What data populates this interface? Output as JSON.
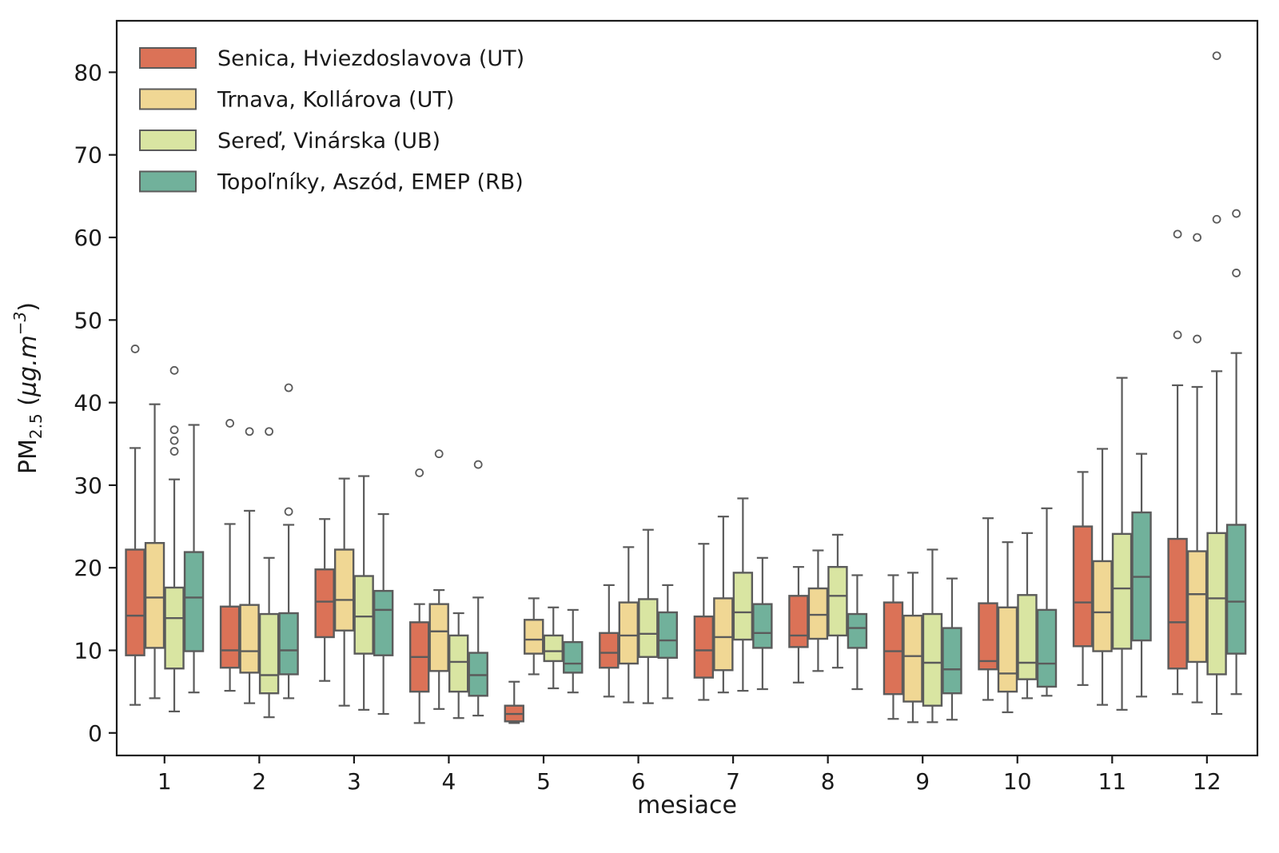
{
  "figure": {
    "title": "",
    "xlabel": "mesiace",
    "ylabel_parts": {
      "base": "PM",
      "sub": "2.5",
      "open": "  (",
      "unit_italic": "µg.m",
      "sup": "−3",
      "close": ")"
    },
    "ylabel_plain": "PM2.5 (µg.m⁻³)"
  },
  "chart_data": {
    "type": "boxplot",
    "title": "",
    "xlabel": "mesiace",
    "ylabel": "PM2.5 (µg.m^-3)",
    "categories": [
      "1",
      "2",
      "3",
      "4",
      "5",
      "6",
      "7",
      "8",
      "9",
      "10",
      "11",
      "12"
    ],
    "yticks": [
      0,
      10,
      20,
      30,
      40,
      50,
      60,
      70,
      80
    ],
    "ylim": [
      -2.7,
      86.2
    ],
    "grid": false,
    "legend_position": "upper-left",
    "colors": {
      "box_edge": "#5b5b5b",
      "whisker": "#5b5b5b",
      "median": "#5b5b5b",
      "outlier_edge": "#5b5b5b",
      "axis": "#1a1a1a"
    },
    "series": [
      {
        "key": "senica",
        "name": "Senica, Hviezdoslavova (UT)",
        "color": "#db7257",
        "boxes": [
          {
            "lo": 3.4,
            "q1": 9.4,
            "med": 14.2,
            "q3": 22.2,
            "hi": 34.5,
            "out": [
              46.5
            ]
          },
          {
            "lo": 5.1,
            "q1": 7.9,
            "med": 10.0,
            "q3": 15.3,
            "hi": 25.3,
            "out": [
              37.5
            ]
          },
          {
            "lo": 6.3,
            "q1": 11.6,
            "med": 15.9,
            "q3": 19.8,
            "hi": 25.9,
            "out": []
          },
          {
            "lo": 1.2,
            "q1": 5.0,
            "med": 9.2,
            "q3": 13.4,
            "hi": 15.6,
            "out": [
              31.5
            ]
          },
          {
            "lo": 1.2,
            "q1": 1.4,
            "med": 2.3,
            "q3": 3.3,
            "hi": 6.2,
            "out": []
          },
          {
            "lo": 4.4,
            "q1": 7.9,
            "med": 9.7,
            "q3": 12.1,
            "hi": 17.9,
            "out": []
          },
          {
            "lo": 4.0,
            "q1": 6.7,
            "med": 10.0,
            "q3": 14.1,
            "hi": 22.9,
            "out": []
          },
          {
            "lo": 6.1,
            "q1": 10.4,
            "med": 11.8,
            "q3": 16.6,
            "hi": 20.1,
            "out": []
          },
          {
            "lo": 1.7,
            "q1": 4.7,
            "med": 9.9,
            "q3": 15.8,
            "hi": 19.1,
            "out": []
          },
          {
            "lo": 4.0,
            "q1": 7.7,
            "med": 8.7,
            "q3": 15.7,
            "hi": 26.0,
            "out": []
          },
          {
            "lo": 5.8,
            "q1": 10.5,
            "med": 15.8,
            "q3": 25.0,
            "hi": 31.6,
            "out": []
          },
          {
            "lo": 4.7,
            "q1": 7.8,
            "med": 13.4,
            "q3": 23.5,
            "hi": 42.1,
            "out": [
              60.4,
              48.2
            ]
          }
        ]
      },
      {
        "key": "trnava",
        "name": "Trnava, Kollárova (UT)",
        "color": "#f0d794",
        "boxes": [
          {
            "lo": 4.2,
            "q1": 10.3,
            "med": 16.4,
            "q3": 23.0,
            "hi": 39.8,
            "out": []
          },
          {
            "lo": 3.6,
            "q1": 7.3,
            "med": 9.9,
            "q3": 15.5,
            "hi": 26.9,
            "out": [
              36.5
            ]
          },
          {
            "lo": 3.3,
            "q1": 12.4,
            "med": 16.1,
            "q3": 22.2,
            "hi": 30.8,
            "out": []
          },
          {
            "lo": 2.9,
            "q1": 7.5,
            "med": 12.3,
            "q3": 15.6,
            "hi": 17.3,
            "out": [
              33.8
            ]
          },
          {
            "lo": 7.1,
            "q1": 9.6,
            "med": 11.3,
            "q3": 13.7,
            "hi": 16.3,
            "out": []
          },
          {
            "lo": 3.7,
            "q1": 8.4,
            "med": 11.8,
            "q3": 15.8,
            "hi": 22.5,
            "out": []
          },
          {
            "lo": 4.9,
            "q1": 7.6,
            "med": 11.6,
            "q3": 16.3,
            "hi": 26.2,
            "out": []
          },
          {
            "lo": 7.5,
            "q1": 11.4,
            "med": 14.3,
            "q3": 17.5,
            "hi": 22.1,
            "out": []
          },
          {
            "lo": 1.3,
            "q1": 3.8,
            "med": 9.3,
            "q3": 14.2,
            "hi": 19.4,
            "out": []
          },
          {
            "lo": 2.5,
            "q1": 5.0,
            "med": 7.2,
            "q3": 15.2,
            "hi": 23.1,
            "out": []
          },
          {
            "lo": 3.4,
            "q1": 9.9,
            "med": 14.6,
            "q3": 20.8,
            "hi": 34.4,
            "out": []
          },
          {
            "lo": 3.7,
            "q1": 8.6,
            "med": 16.8,
            "q3": 22.0,
            "hi": 41.9,
            "out": [
              60.0,
              47.7
            ]
          }
        ]
      },
      {
        "key": "sered",
        "name": "Sereď, Vinárska (UB)",
        "color": "#d9e5a2",
        "boxes": [
          {
            "lo": 2.6,
            "q1": 7.8,
            "med": 13.9,
            "q3": 17.6,
            "hi": 30.7,
            "out": [
              43.9,
              36.7,
              35.4,
              34.1
            ]
          },
          {
            "lo": 1.9,
            "q1": 4.8,
            "med": 7.0,
            "q3": 14.4,
            "hi": 21.2,
            "out": [
              36.5
            ]
          },
          {
            "lo": 2.8,
            "q1": 9.6,
            "med": 14.1,
            "q3": 19.0,
            "hi": 31.1,
            "out": []
          },
          {
            "lo": 1.8,
            "q1": 5.0,
            "med": 8.6,
            "q3": 11.8,
            "hi": 14.5,
            "out": []
          },
          {
            "lo": 5.4,
            "q1": 8.7,
            "med": 9.9,
            "q3": 11.8,
            "hi": 15.2,
            "out": []
          },
          {
            "lo": 3.6,
            "q1": 9.2,
            "med": 12.0,
            "q3": 16.2,
            "hi": 24.6,
            "out": []
          },
          {
            "lo": 5.1,
            "q1": 11.3,
            "med": 14.6,
            "q3": 19.4,
            "hi": 28.4,
            "out": []
          },
          {
            "lo": 7.9,
            "q1": 11.8,
            "med": 16.6,
            "q3": 20.1,
            "hi": 24.0,
            "out": []
          },
          {
            "lo": 1.3,
            "q1": 3.3,
            "med": 8.5,
            "q3": 14.4,
            "hi": 22.2,
            "out": []
          },
          {
            "lo": 4.2,
            "q1": 6.5,
            "med": 8.5,
            "q3": 16.7,
            "hi": 24.2,
            "out": []
          },
          {
            "lo": 2.8,
            "q1": 10.2,
            "med": 17.5,
            "q3": 24.1,
            "hi": 43.0,
            "out": []
          },
          {
            "lo": 2.3,
            "q1": 7.1,
            "med": 16.3,
            "q3": 24.2,
            "hi": 43.8,
            "out": [
              82.0,
              62.2
            ]
          }
        ]
      },
      {
        "key": "topolniky",
        "name": "Topoľníky, Aszód, EMEP (RB)",
        "color": "#71b19b",
        "boxes": [
          {
            "lo": 4.9,
            "q1": 9.9,
            "med": 16.4,
            "q3": 21.9,
            "hi": 37.3,
            "out": []
          },
          {
            "lo": 4.2,
            "q1": 7.1,
            "med": 10.0,
            "q3": 14.5,
            "hi": 25.2,
            "out": [
              41.8,
              26.8
            ]
          },
          {
            "lo": 2.3,
            "q1": 9.4,
            "med": 14.9,
            "q3": 17.2,
            "hi": 26.5,
            "out": []
          },
          {
            "lo": 2.1,
            "q1": 4.5,
            "med": 7.0,
            "q3": 9.7,
            "hi": 16.4,
            "out": [
              32.5
            ]
          },
          {
            "lo": 4.9,
            "q1": 7.3,
            "med": 8.4,
            "q3": 11.0,
            "hi": 14.9,
            "out": []
          },
          {
            "lo": 4.2,
            "q1": 9.1,
            "med": 11.2,
            "q3": 14.6,
            "hi": 17.9,
            "out": []
          },
          {
            "lo": 5.3,
            "q1": 10.3,
            "med": 12.1,
            "q3": 15.6,
            "hi": 21.2,
            "out": []
          },
          {
            "lo": 5.3,
            "q1": 10.3,
            "med": 12.7,
            "q3": 14.4,
            "hi": 19.1,
            "out": []
          },
          {
            "lo": 1.6,
            "q1": 4.8,
            "med": 7.7,
            "q3": 12.7,
            "hi": 18.7,
            "out": []
          },
          {
            "lo": 4.5,
            "q1": 5.6,
            "med": 8.4,
            "q3": 14.9,
            "hi": 27.2,
            "out": []
          },
          {
            "lo": 4.4,
            "q1": 11.2,
            "med": 18.9,
            "q3": 26.7,
            "hi": 33.8,
            "out": []
          },
          {
            "lo": 4.7,
            "q1": 9.6,
            "med": 15.9,
            "q3": 25.2,
            "hi": 46.0,
            "out": [
              62.9,
              55.7
            ]
          }
        ]
      }
    ]
  }
}
